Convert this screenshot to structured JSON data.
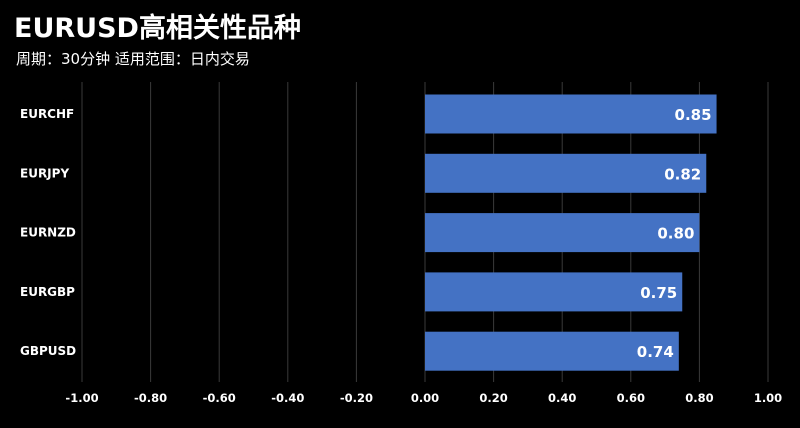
{
  "header": {
    "title": "EURUSD高相关性品种",
    "subtitle": "周期：30分钟  适用范围：日内交易"
  },
  "colors": {
    "background": "#000000",
    "bar": "#4472c4",
    "grid": "#3a3a3a",
    "text": "#ffffff"
  },
  "chart_data": {
    "type": "bar",
    "orientation": "horizontal",
    "categories": [
      "EURCHF",
      "EURJPY",
      "EURNZD",
      "EURGBP",
      "GBPUSD"
    ],
    "values": [
      0.85,
      0.82,
      0.8,
      0.75,
      0.74
    ],
    "value_labels": [
      "0.85",
      "0.82",
      "0.80",
      "0.75",
      "0.74"
    ],
    "xlim": [
      -1.0,
      1.0
    ],
    "x_ticks": [
      -1.0,
      -0.8,
      -0.6,
      -0.4,
      -0.2,
      0.0,
      0.2,
      0.4,
      0.6,
      0.8,
      1.0
    ],
    "x_tick_labels": [
      "-1.00",
      "-0.80",
      "-0.60",
      "-0.40",
      "-0.20",
      "0.00",
      "0.20",
      "0.40",
      "0.60",
      "0.80",
      "1.00"
    ],
    "grid": true,
    "legend": "none"
  }
}
